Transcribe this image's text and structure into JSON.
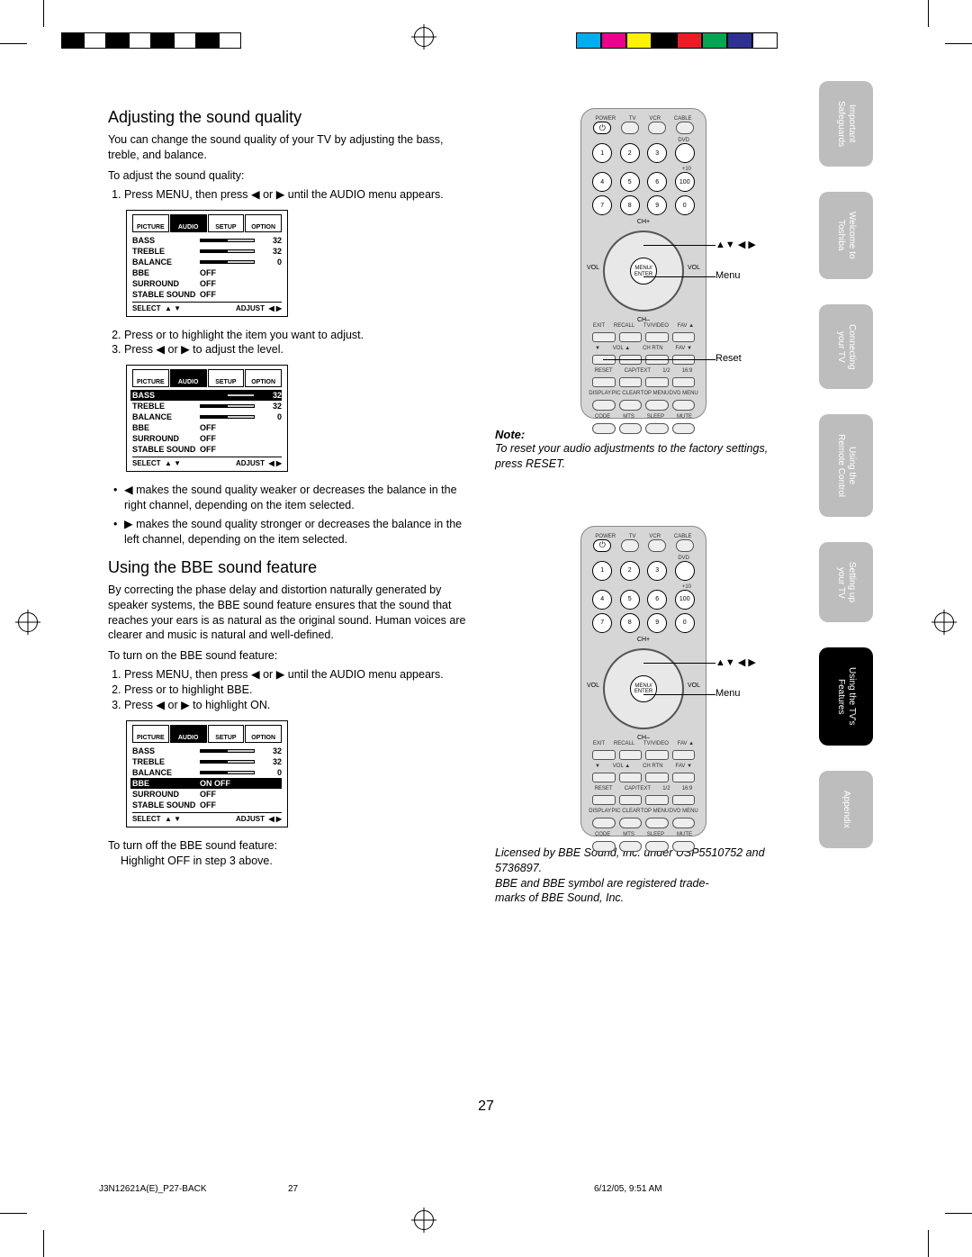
{
  "meta": {
    "page_number": "27",
    "footer_left": "J3N12621A(E)_P27-BACK",
    "footer_center": "27",
    "footer_right": "6/12/05, 9:51 AM"
  },
  "color_bars": [
    "#00aeef",
    "#ec008c",
    "#fff200",
    "#000000",
    "#ed1c24",
    "#00a651",
    "#2e3192",
    "#ffffff"
  ],
  "section1": {
    "heading": "Adjusting the sound quality",
    "intro": "You can change the sound quality of your TV by adjusting the bass, treble, and balance.",
    "lead": "To adjust the sound quality:",
    "step1": "Press MENU, then press ◀ or ▶ until the AUDIO menu appears.",
    "step2": "Press      or      to highlight the item you want to adjust.",
    "step3": "Press ◀ or ▶ to adjust the level.",
    "bul1": "◀  makes the sound quality weaker or decreases the balance in the right channel, depending on the item selected.",
    "bul2": "▶ makes the sound quality stronger or decreases the balance in the left channel, depending on the item selected."
  },
  "section2": {
    "heading": "Using the BBE sound feature",
    "intro": "By correcting the phase delay and distortion naturally generated by speaker systems, the BBE sound feature ensures that the sound that reaches your ears is as natural as the original sound. Human voices are clearer and music is natural and well-defined.",
    "lead": "To turn on the BBE sound feature:",
    "step1": "Press MENU, then press ◀ or ▶ until the AUDIO menu appears.",
    "step2": "Press      or      to highlight BBE.",
    "step3": "Press ◀ or ▶ to highlight ON.",
    "off_lead": "To turn off the BBE sound feature:",
    "off_body": "Highlight OFF in step 3 above."
  },
  "menu": {
    "tabs": [
      "PICTURE",
      "AUDIO",
      "SETUP",
      "OPTION"
    ],
    "rows": {
      "bass": {
        "label": "BASS",
        "value": "32",
        "fill": 50
      },
      "treble": {
        "label": "TREBLE",
        "value": "32",
        "fill": 50
      },
      "balance": {
        "label": "BALANCE",
        "value": "0",
        "fill": 50
      },
      "bbe": {
        "label": "BBE",
        "text": "OFF"
      },
      "bbe_on": {
        "label": "BBE",
        "text": "ON   OFF"
      },
      "surround": {
        "label": "SURROUND",
        "text": "OFF"
      },
      "stable": {
        "label": "STABLE SOUND",
        "text": "OFF"
      }
    },
    "footer_select": "SELECT",
    "footer_adjust": "ADJUST"
  },
  "remote": {
    "top_labels": [
      "POWER",
      "TV",
      "VCR",
      "CABLE"
    ],
    "dvd": "DVD",
    "plus10": "+10",
    "chplus": "CH+",
    "chminus": "CH–",
    "vol": "VOL",
    "menu": "MENU/\nENTER",
    "row1": [
      "EXIT",
      "RECALL",
      "TV/VIDEO",
      "FAV ▲"
    ],
    "row2": [
      "▼",
      "VOL ▲",
      "CH RTN",
      "FAV ▼"
    ],
    "row3": [
      "RESET",
      "CAP/TEXT",
      "1/2",
      "16:9"
    ],
    "row4": [
      "DISPLAY",
      "PIC CLEAR",
      "TOP MENU",
      "DVD MENU"
    ],
    "row5": [
      "CODE",
      "MTS",
      "SLEEP",
      "MUTE"
    ],
    "callout_arrows": "▲▼ ◀ ▶",
    "callout_menu": "Menu",
    "callout_reset": "Reset"
  },
  "note": {
    "heading": "Note:",
    "body": "To reset your audio adjustments to the factory settings, press RESET."
  },
  "license": "Licensed by BBE Sound, Inc. under USP5510752 and 5736897.\nBBE and BBE symbol are registered trade-\nmarks of BBE Sound, Inc.",
  "sidetabs": [
    {
      "l1": "Important",
      "l2": "Safeguards"
    },
    {
      "l1": "Welcome to",
      "l2": "Toshiba"
    },
    {
      "l1": "Connecting",
      "l2": "your TV"
    },
    {
      "l1": "Using the",
      "l2": "Remote Control"
    },
    {
      "l1": "Setting up",
      "l2": "your TV"
    },
    {
      "l1": "Using the  TV's",
      "l2": "Features"
    },
    {
      "l1": "Appendix",
      "l2": ""
    }
  ]
}
